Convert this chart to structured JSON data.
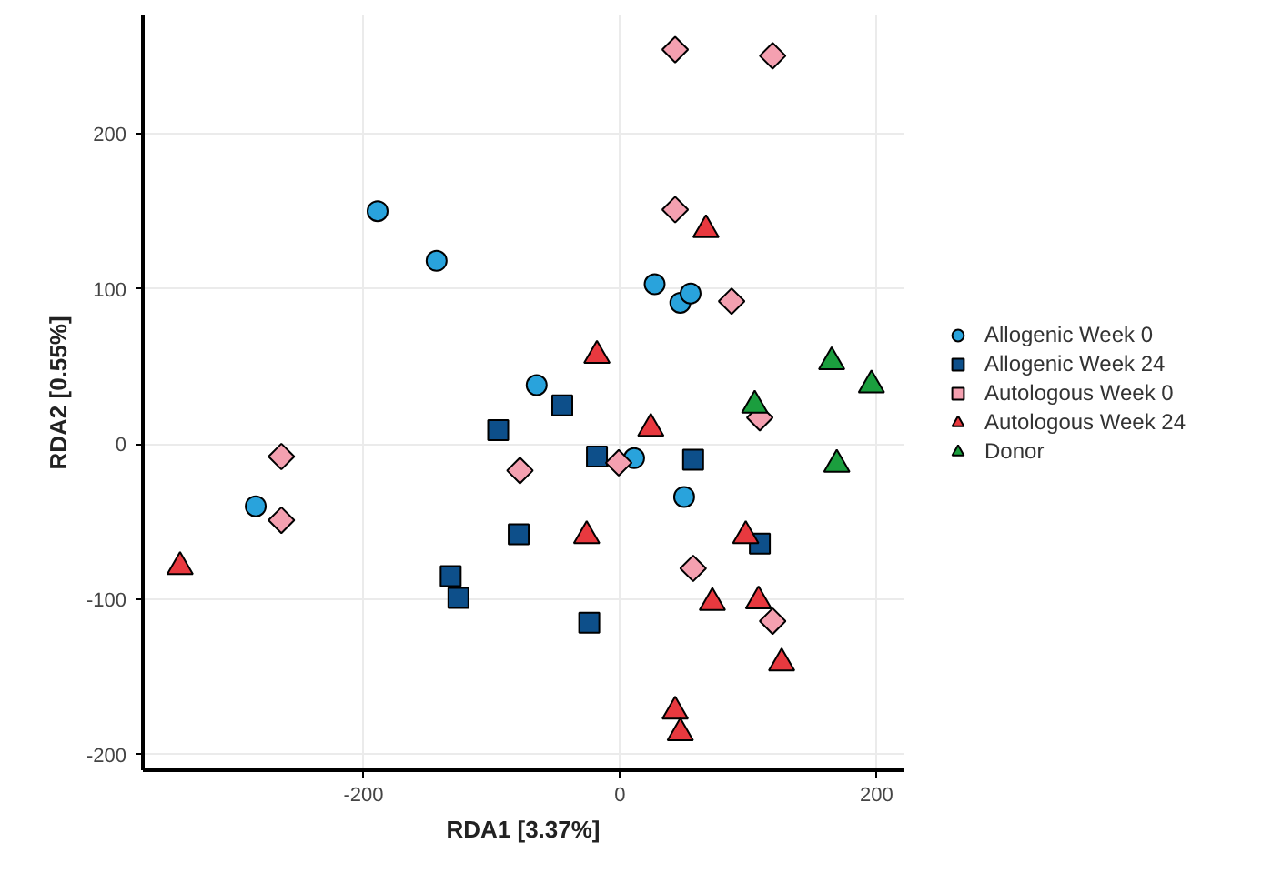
{
  "chart_data": {
    "type": "scatter",
    "xlabel": "RDA1 [3.37%]",
    "ylabel": "RDA2 [0.55%]",
    "xlim": [
      -372,
      221
    ],
    "ylim": [
      -210,
      276
    ],
    "xticks": [
      -200,
      0,
      200
    ],
    "yticks": [
      -200,
      -100,
      0,
      100,
      200
    ],
    "grid": true,
    "legend": "right",
    "series": [
      {
        "name": "Allogenic Week 0",
        "color": "#29a3dc",
        "marker": "circle",
        "x": [
          -189,
          -143,
          -284,
          -65,
          27,
          47,
          55,
          11,
          50
        ],
        "values": [
          150,
          118,
          -40,
          38,
          103,
          91,
          97,
          -9,
          -34
        ]
      },
      {
        "name": "Allogenic Week 24",
        "color": "#0d4f8a",
        "marker": "square",
        "x": [
          -45,
          -95,
          -18,
          -79,
          -132,
          -126,
          -24,
          57,
          109
        ],
        "values": [
          25,
          9,
          -8,
          -58,
          -85,
          -99,
          -115,
          -10,
          -64
        ]
      },
      {
        "name": "Autologous Week 0",
        "color": "#f4a0b0",
        "marker": "diamond",
        "x": [
          43,
          119,
          43,
          87,
          109,
          -264,
          -264,
          -78,
          -1,
          57,
          119
        ],
        "values": [
          254,
          250,
          151,
          92,
          17,
          -8,
          -49,
          -17,
          -12,
          -80,
          -114
        ]
      },
      {
        "name": "Autologous Week 24",
        "color": "#e8393f",
        "marker": "triangle",
        "x": [
          -18,
          67,
          24,
          -343,
          -26,
          98,
          72,
          108,
          126,
          43,
          47
        ],
        "values": [
          57,
          138,
          10,
          -79,
          -59,
          -59,
          -102,
          -101,
          -141,
          -172,
          -186
        ]
      },
      {
        "name": "Donor",
        "color": "#1b9e3e",
        "marker": "triangle",
        "x": [
          165,
          196,
          105,
          169
        ],
        "values": [
          53,
          38,
          25,
          -13
        ]
      }
    ]
  }
}
